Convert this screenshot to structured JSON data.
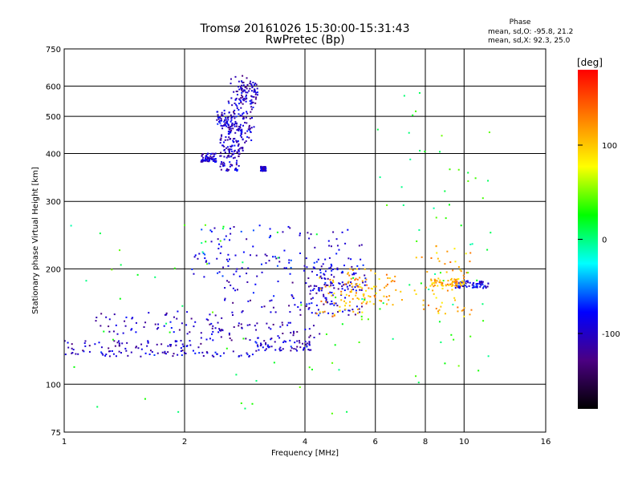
{
  "chart_data": {
    "type": "scatter",
    "title": "Tromsø 20161026 15:30:00-15:31:43",
    "subtitle": "RwPretec (Bp)",
    "xlabel": "Frequency [MHz]",
    "ylabel": "Stationary phase Virtual Height [km]",
    "xscale": "log",
    "yscale": "log",
    "xlim": [
      1,
      16
    ],
    "ylim": [
      75,
      750
    ],
    "xticks": [
      1,
      2,
      4,
      6,
      8,
      10,
      16
    ],
    "yticks": [
      75,
      100,
      200,
      300,
      400,
      500,
      600,
      750
    ],
    "xgrid": [
      2,
      4,
      6,
      8,
      10
    ],
    "ygrid": [
      100,
      200,
      300,
      400,
      500,
      600
    ],
    "grid": true,
    "stats": {
      "title": "Phase",
      "line1": "mean, sd,O: -95.8, 21.2",
      "line2": "mean, sd,X:  92.3, 25.0"
    },
    "colorbar": {
      "label": "[deg]",
      "min": -180,
      "max": 180,
      "ticks": [
        100,
        0,
        -100
      ],
      "colors": [
        "#000000",
        "#4b0082",
        "#0000ff",
        "#00ffff",
        "#00ff00",
        "#ffff00",
        "#ff8000",
        "#ff0000"
      ]
    },
    "series": [
      {
        "x": [
          [
            2.2,
            2.4
          ],
          [
            2.45,
            2.8
          ],
          [
            2.55,
            2.95
          ],
          [
            2.6,
            3.0
          ],
          [
            2.75,
            3.05
          ],
          [
            2.45,
            2.75
          ],
          [
            3.1,
            3.2
          ],
          [
            2.4,
            2.7
          ]
        ],
        "y": [
          [
            380,
            400
          ],
          [
            390,
            480
          ],
          [
            420,
            560
          ],
          [
            450,
            640
          ],
          [
            540,
            620
          ],
          [
            360,
            420
          ],
          [
            360,
            370
          ],
          [
            470,
            520
          ]
        ],
        "phase": -100,
        "count": 8
      },
      {
        "x": [
          [
            1.0,
            3.0
          ],
          [
            3.0,
            4.2
          ]
        ],
        "y": [
          [
            118,
            122
          ],
          [
            122,
            130
          ]
        ],
        "phase": -95,
        "count": 2
      },
      {
        "x": [
          [
            1.0,
            2.2
          ],
          [
            2.2,
            4.5
          ]
        ],
        "y": [
          [
            122,
            130
          ],
          [
            130,
            145
          ]
        ],
        "phase": -105,
        "count": 2
      },
      {
        "x": [
          [
            1.2,
            2.5
          ],
          [
            2.5,
            5.0
          ],
          [
            4.0,
            5.6
          ]
        ],
        "y": [
          [
            135,
            155
          ],
          [
            150,
            190
          ],
          [
            150,
            185
          ]
        ],
        "phase": -100,
        "count": 3
      },
      {
        "x": [
          [
            2.0,
            4.8
          ],
          [
            2.2,
            5.6
          ],
          [
            4.2,
            5.8
          ],
          [
            9.5,
            11.5
          ]
        ],
        "y": [
          [
            190,
            220
          ],
          [
            210,
            260
          ],
          [
            175,
            205
          ],
          [
            178,
            186
          ]
        ],
        "phase": -90,
        "count": 4
      },
      {
        "x": [
          [
            4.2,
            6.0
          ],
          [
            8.2,
            10.0
          ],
          [
            5.0,
            7.0
          ],
          [
            7.5,
            10.5
          ]
        ],
        "y": [
          [
            150,
            190
          ],
          [
            180,
            190
          ],
          [
            160,
            200
          ],
          [
            150,
            230
          ]
        ],
        "phase": 110,
        "count": 4
      },
      {
        "x": [
          [
            1.0,
            6.0
          ],
          [
            6.0,
            12.0
          ]
        ],
        "y": [
          [
            80,
            270
          ],
          [
            100,
            580
          ]
        ],
        "phase": 20,
        "count": 2
      }
    ]
  }
}
